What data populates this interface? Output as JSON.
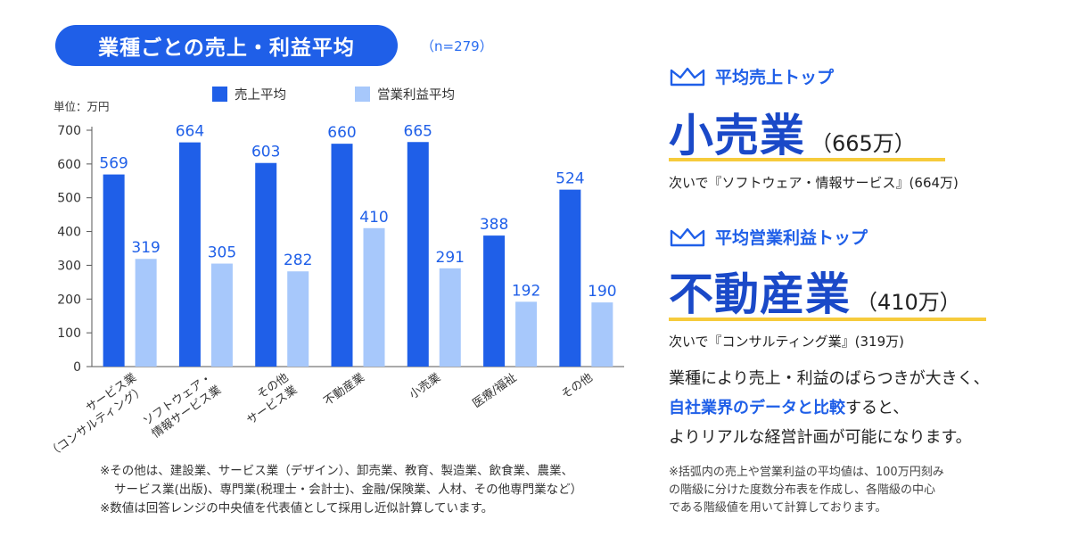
{
  "header": {
    "title": "業種ごとの売上・利益平均",
    "sample_size": "（n=279）"
  },
  "chart_data": {
    "type": "bar",
    "unit_label": "単位：万円",
    "categories": [
      [
        "サービス業",
        "（コンサルティング）"
      ],
      [
        "ソフトウェア・",
        "情報サービス業"
      ],
      [
        "その他",
        "サービス業"
      ],
      [
        "不動産業"
      ],
      [
        "小売業"
      ],
      [
        "医療/福祉"
      ],
      [
        "その他"
      ]
    ],
    "series": [
      {
        "name": "売上平均",
        "color": "#1f5fe8",
        "label_color": "#1f5fe8",
        "values": [
          569,
          664,
          603,
          660,
          665,
          388,
          524
        ]
      },
      {
        "name": "営業利益平均",
        "color": "#a7c8fb",
        "label_color": "#1f5fe8",
        "values": [
          319,
          305,
          282,
          410,
          291,
          192,
          190
        ]
      }
    ],
    "ylim": [
      0,
      700
    ],
    "yticks": [
      0,
      100,
      200,
      300,
      400,
      500,
      600,
      700
    ],
    "legend_position": "top",
    "grid": false
  },
  "chart_notes": [
    "※その他は、建設業、サービス業（デザイン）、卸売業、教育、製造業、飲食業、農業、",
    "サービス業(出版)、専門業(税理士・会計士)、金融/保険業、人材、その他専門業など）",
    "※数値は回答レンジの中央値を代表値として採用し近似計算しています。"
  ],
  "sales_top": {
    "heading": "平均売上トップ",
    "industry": "小売業",
    "amount": "（665万）",
    "runner_up": "次いで『ソフトウェア・情報サービス』(664万)"
  },
  "profit_top": {
    "heading": "平均営業利益トップ",
    "industry": "不動産業",
    "amount": "（410万）",
    "runner_up": "次いで『コンサルティング業』(319万)"
  },
  "summary": {
    "line1": "業種により売上・利益のばらつきが大きく、",
    "line2_highlight": "自社業界のデータと比較",
    "line2_rest": "すると、",
    "line3": "よりリアルな経営計画が可能になります。"
  },
  "right_notes": [
    "※括弧内の売上や営業利益の平均値は、100万円刻み",
    "の階級に分けた度数分布表を作成し、各階級の中心",
    "である階級値を用いて計算しております。"
  ],
  "colors": {
    "accent": "#1f5fe8",
    "deep": "#1a49c8",
    "light_bar": "#a7c8fb",
    "underline": "#f6cb3c"
  }
}
